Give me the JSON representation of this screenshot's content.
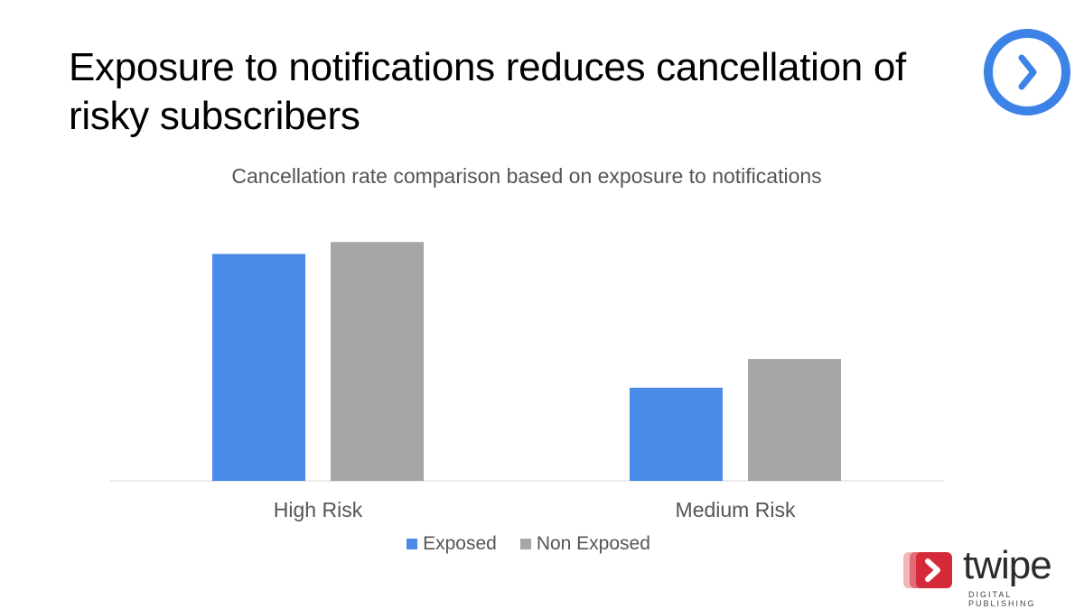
{
  "slide": {
    "title": "Exposure to notifications reduces cancellation of risky subscribers"
  },
  "icons": {
    "next": "chevron-right-circle-icon",
    "brand": "twipe-logo-icon"
  },
  "brand": {
    "name": "twipe",
    "tagline": "DIGITAL PUBLISHING"
  },
  "colors": {
    "exposed": "#4a8ae8",
    "non_exposed": "#a6a6a6",
    "badge": "#3d82e6",
    "logo_red": "#d42a3a"
  },
  "chart_data": {
    "type": "bar",
    "title": "Cancellation rate comparison based on exposure to notifications",
    "xlabel": "",
    "ylabel": "",
    "categories": [
      "High Risk",
      "Medium Risk"
    ],
    "series": [
      {
        "name": "Exposed",
        "values": [
          0.95,
          0.39
        ]
      },
      {
        "name": "Non Exposed",
        "values": [
          1.0,
          0.51
        ]
      }
    ],
    "ylim": [
      0,
      1.05
    ],
    "grid": false,
    "legend": "bottom",
    "y_axis_labels_shown": false
  }
}
